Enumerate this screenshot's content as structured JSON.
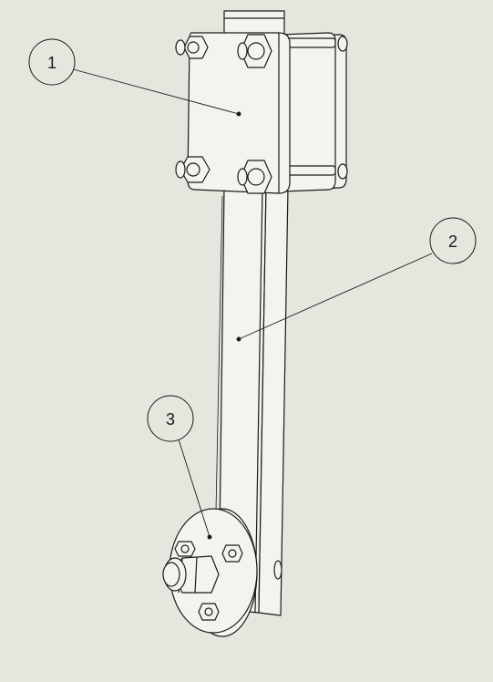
{
  "colors": {
    "background": "#e6e6de",
    "line": "#1a1a1a",
    "part_fill": "#f4f4ee"
  },
  "balloons": [
    {
      "label": "1",
      "part": "clamp-plate"
    },
    {
      "label": "2",
      "part": "arm"
    },
    {
      "label": "3",
      "part": "flange-disc"
    }
  ]
}
